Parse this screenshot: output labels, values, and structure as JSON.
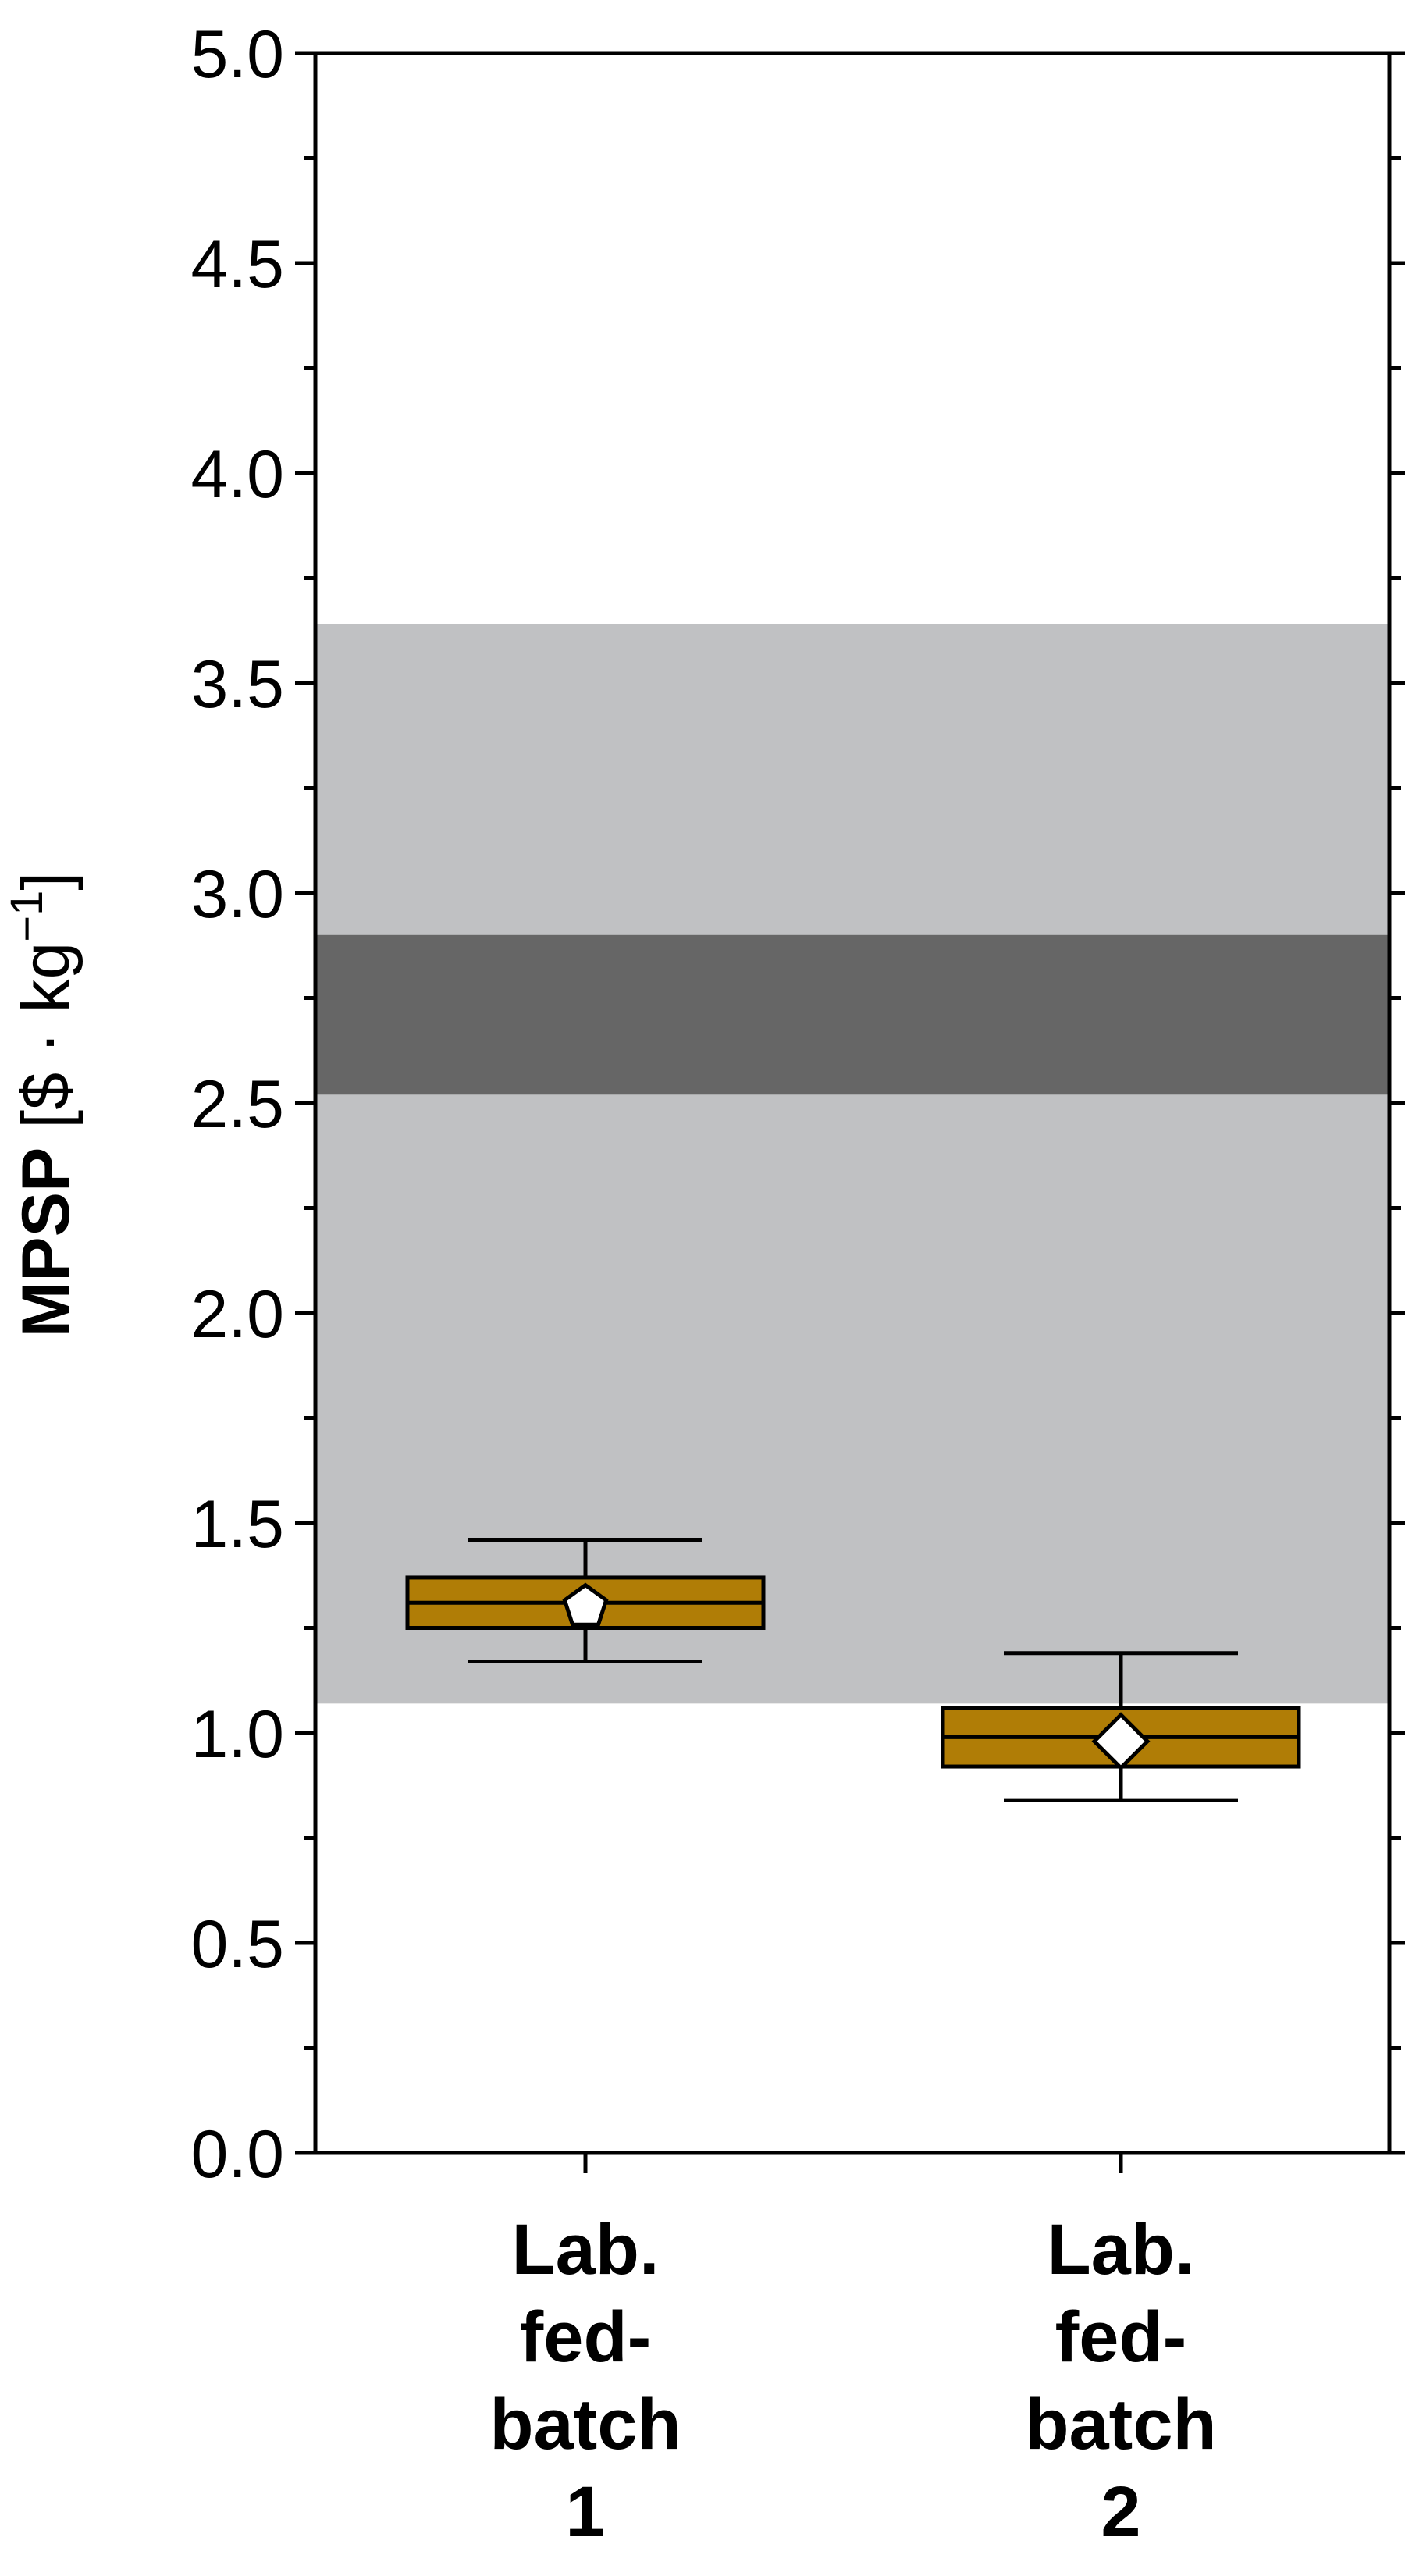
{
  "chart_data": {
    "type": "box",
    "title": "",
    "xlabel": "",
    "ylabel": {
      "bold": "MPSP",
      "units_prefix": " [$ · kg",
      "units_superscript": "−1",
      "units_suffix": "]"
    },
    "ylim": [
      0.0,
      5.0
    ],
    "yticks": [
      "0.0",
      "0.5",
      "1.0",
      "1.5",
      "2.0",
      "2.5",
      "3.0",
      "3.5",
      "4.0",
      "4.5",
      "5.0"
    ],
    "yminor_step": 0.25,
    "categories": [
      {
        "lines": [
          "Lab.",
          "fed-",
          "batch",
          "1"
        ]
      },
      {
        "lines": [
          "Lab.",
          "fed-",
          "batch",
          "2"
        ]
      }
    ],
    "boxes": [
      {
        "whisker_low": 1.17,
        "q1": 1.25,
        "median": 1.31,
        "q3": 1.37,
        "whisker_high": 1.46,
        "mean": 1.3,
        "marker": "pentagon"
      },
      {
        "whisker_low": 0.84,
        "q1": 0.92,
        "median": 0.99,
        "q3": 1.06,
        "whisker_high": 1.19,
        "mean": 0.98,
        "marker": "diamond"
      }
    ],
    "bands": [
      {
        "low": 1.07,
        "high": 3.64,
        "color": "#c0c1c3"
      },
      {
        "low": 2.52,
        "high": 2.9,
        "color": "#666666"
      }
    ],
    "colors": {
      "box_fill": "#b07d06",
      "box_edge": "#000000",
      "marker_fill": "#ffffff"
    },
    "grid": false
  }
}
